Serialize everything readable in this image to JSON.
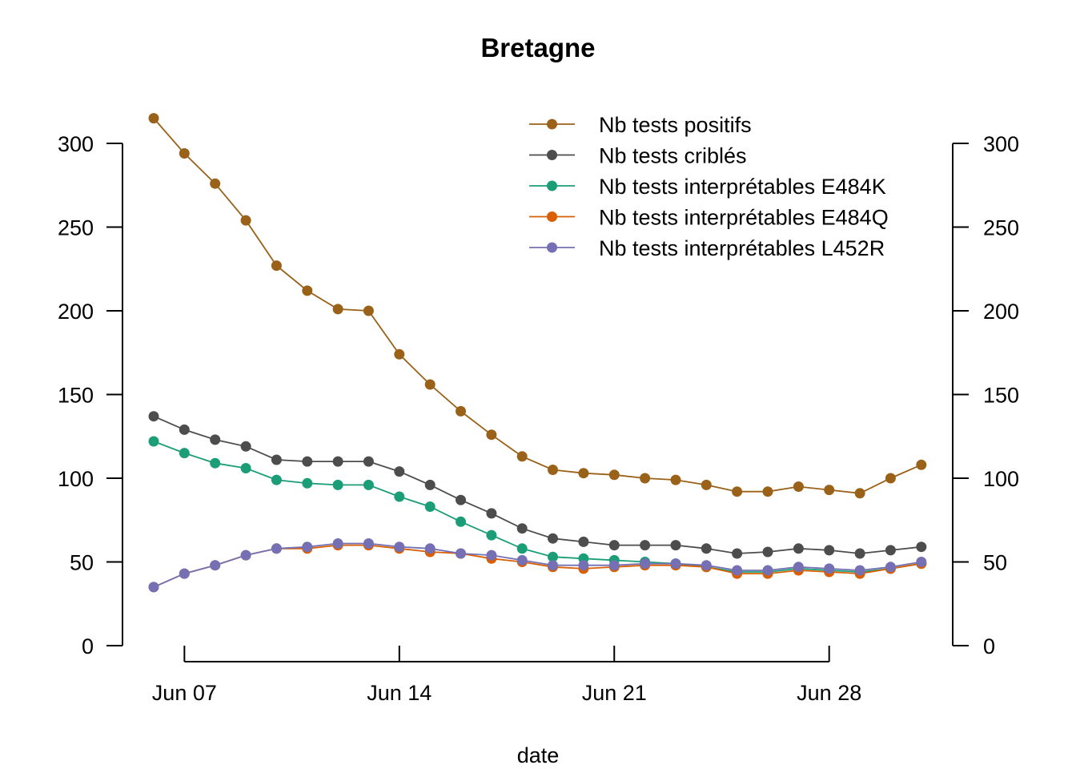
{
  "chart_data": {
    "type": "line",
    "title": "Bretagne",
    "xlabel": "date",
    "ylabel": "",
    "ylim": [
      0,
      300
    ],
    "y_ticks": [
      0,
      50,
      100,
      150,
      200,
      250,
      300
    ],
    "x_tick_labels": [
      "Jun 07",
      "Jun 14",
      "Jun 21",
      "Jun 28"
    ],
    "x_tick_dates": [
      "2021-06-07",
      "2021-06-14",
      "2021-06-21",
      "2021-06-28"
    ],
    "x": [
      "2021-06-06",
      "2021-06-07",
      "2021-06-08",
      "2021-06-09",
      "2021-06-10",
      "2021-06-11",
      "2021-06-12",
      "2021-06-13",
      "2021-06-14",
      "2021-06-15",
      "2021-06-16",
      "2021-06-17",
      "2021-06-18",
      "2021-06-19",
      "2021-06-20",
      "2021-06-21",
      "2021-06-22",
      "2021-06-23",
      "2021-06-24",
      "2021-06-25",
      "2021-06-26",
      "2021-06-27",
      "2021-06-28",
      "2021-06-29",
      "2021-06-30",
      "2021-07-01"
    ],
    "series": [
      {
        "name": "Nb tests positifs",
        "color": "#9a6119",
        "values": [
          315,
          294,
          276,
          254,
          227,
          212,
          201,
          200,
          174,
          156,
          140,
          126,
          113,
          105,
          103,
          102,
          100,
          99,
          96,
          92,
          92,
          95,
          93,
          91,
          100,
          108
        ]
      },
      {
        "name": "Nb tests criblés",
        "color": "#4d4d4d",
        "values": [
          137,
          129,
          123,
          119,
          111,
          110,
          110,
          110,
          104,
          96,
          87,
          79,
          70,
          64,
          62,
          60,
          60,
          60,
          58,
          55,
          56,
          58,
          57,
          55,
          57,
          59
        ]
      },
      {
        "name": "Nb tests interprétables E484K",
        "color": "#1b9e77",
        "values": [
          122,
          115,
          109,
          106,
          99,
          97,
          96,
          96,
          89,
          83,
          74,
          66,
          58,
          53,
          52,
          51,
          50,
          49,
          47,
          44,
          44,
          46,
          45,
          44,
          46,
          49
        ]
      },
      {
        "name": "Nb tests interprétables E484Q",
        "color": "#d95f02",
        "values": [
          35,
          43,
          48,
          54,
          58,
          58,
          60,
          60,
          58,
          56,
          55,
          52,
          50,
          47,
          46,
          47,
          48,
          48,
          47,
          43,
          43,
          45,
          44,
          43,
          46,
          49
        ]
      },
      {
        "name": "Nb tests interprétables L452R",
        "color": "#7570b3",
        "values": [
          35,
          43,
          48,
          54,
          58,
          59,
          61,
          61,
          59,
          58,
          55,
          54,
          51,
          48,
          48,
          48,
          49,
          49,
          48,
          45,
          45,
          47,
          46,
          45,
          47,
          50
        ]
      }
    ],
    "legend_position": "top-right",
    "grid": false
  }
}
